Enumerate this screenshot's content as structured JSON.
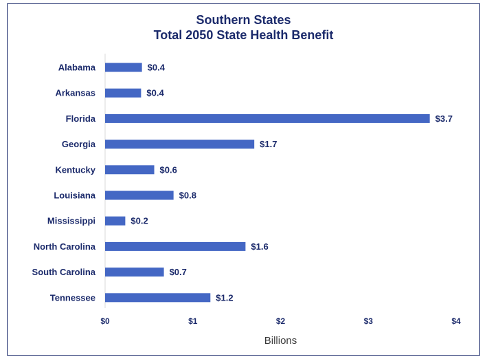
{
  "chart_data": {
    "type": "bar",
    "orientation": "horizontal",
    "title_line1": "Southern States",
    "title_line2": "Total 2050 State Health Benefit",
    "categories": [
      "Alabama",
      "Arkansas",
      "Florida",
      "Georgia",
      "Kentucky",
      "Louisiana",
      "Mississippi",
      "North Carolina",
      "South Carolina",
      "Tennessee"
    ],
    "values": [
      0.42,
      0.41,
      3.7,
      1.7,
      0.56,
      0.78,
      0.23,
      1.6,
      0.67,
      1.2
    ],
    "value_labels": [
      "$0.4",
      "$0.4",
      "$3.7",
      "$1.7",
      "$0.6",
      "$0.8",
      "$0.2",
      "$1.6",
      "$0.7",
      "$1.2"
    ],
    "xlabel": "Billions",
    "ylabel": "",
    "xlim": [
      0,
      4
    ],
    "ticks": [
      0,
      1,
      2,
      3,
      4
    ],
    "tick_labels": [
      "$0",
      "$1",
      "$2",
      "$3",
      "$4"
    ],
    "grid": false,
    "legend": "none",
    "bar_color": "#4467c4",
    "text_color": "#1b2a6b"
  }
}
